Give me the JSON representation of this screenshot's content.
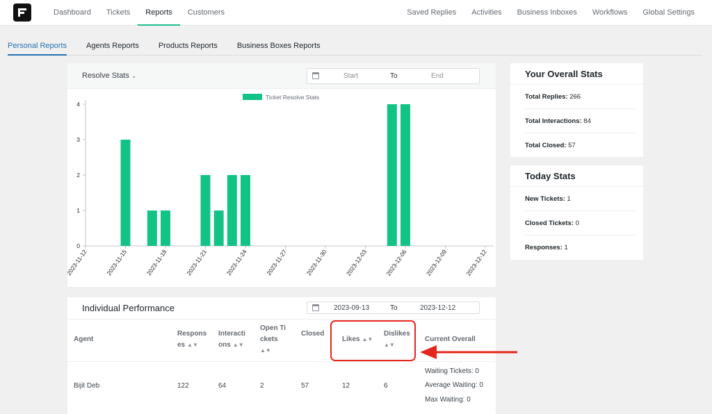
{
  "nav": {
    "left": [
      "Dashboard",
      "Tickets",
      "Reports",
      "Customers"
    ],
    "active": "Reports",
    "right": [
      "Saved Replies",
      "Activities",
      "Business Inboxes",
      "Workflows",
      "Global Settings"
    ]
  },
  "subtabs": {
    "items": [
      "Personal Reports",
      "Agents Reports",
      "Products Reports",
      "Business Boxes Reports"
    ],
    "active": "Personal Reports"
  },
  "resolve": {
    "title": "Resolve Stats",
    "start_placeholder": "Start",
    "to": "To",
    "end_placeholder": "End"
  },
  "chart_data": {
    "type": "bar",
    "legend": "Ticket Resolve Stats",
    "legend_position": "top-center",
    "x": [
      "2023-11-12",
      "2023-11-13",
      "2023-11-14",
      "2023-11-15",
      "2023-11-16",
      "2023-11-17",
      "2023-11-18",
      "2023-11-19",
      "2023-11-20",
      "2023-11-21",
      "2023-11-22",
      "2023-11-23",
      "2023-11-24",
      "2023-11-25",
      "2023-11-26",
      "2023-11-27",
      "2023-11-28",
      "2023-11-29",
      "2023-11-30",
      "2023-12-01",
      "2023-12-02",
      "2023-12-03",
      "2023-12-04",
      "2023-12-05",
      "2023-12-06",
      "2023-12-07",
      "2023-12-08",
      "2023-12-09",
      "2023-12-10",
      "2023-12-11",
      "2023-12-12"
    ],
    "tick_labels": [
      "2023-11-12",
      "2023-11-15",
      "2023-11-18",
      "2023-11-21",
      "2023-11-24",
      "2023-11-27",
      "2023-11-30",
      "2023-12-03",
      "2023-12-06",
      "2023-12-09",
      "2023-12-12"
    ],
    "values": [
      0,
      0,
      0,
      3,
      0,
      1,
      1,
      0,
      0,
      2,
      1,
      2,
      2,
      0,
      0,
      0,
      0,
      0,
      0,
      0,
      0,
      0,
      0,
      4,
      4,
      0,
      0,
      0,
      0,
      0,
      0
    ],
    "yticks": [
      0,
      1,
      2,
      3,
      4
    ],
    "ylim": [
      0,
      4
    ],
    "grid": false,
    "color": "#13c386"
  },
  "overall": {
    "title": "Your Overall Stats",
    "rows": [
      {
        "label": "Total Replies:",
        "value": "266"
      },
      {
        "label": "Total Interactions:",
        "value": "84"
      },
      {
        "label": "Total Closed:",
        "value": "57"
      }
    ]
  },
  "today": {
    "title": "Today Stats",
    "rows": [
      {
        "label": "New Tickets:",
        "value": "1"
      },
      {
        "label": "Closed Tickets:",
        "value": "0"
      },
      {
        "label": "Responses:",
        "value": "1"
      }
    ]
  },
  "performance": {
    "title": "Individual Performance",
    "from": "2023-09-13",
    "to": "To",
    "until": "2023-12-12",
    "headers": {
      "agent": "Agent",
      "responses_1": "Respons",
      "responses_2": "es",
      "interactions_1": "Interacti",
      "interactions_2": "ons",
      "open_1": "Open Ti",
      "open_2": "ckets",
      "closed": "Closed",
      "likes": "Likes",
      "dislikes": "Dislikes",
      "overall": "Current Overall"
    },
    "row": {
      "agent": "Bijit Deb",
      "responses": "122",
      "interactions": "64",
      "open": "2",
      "closed": "57",
      "likes": "12",
      "dislikes": "6",
      "waiting_tickets": "Waiting Tickets: 0",
      "average_waiting": "Average Waiting: 0",
      "max_waiting": "Max Waiting: 0"
    }
  }
}
